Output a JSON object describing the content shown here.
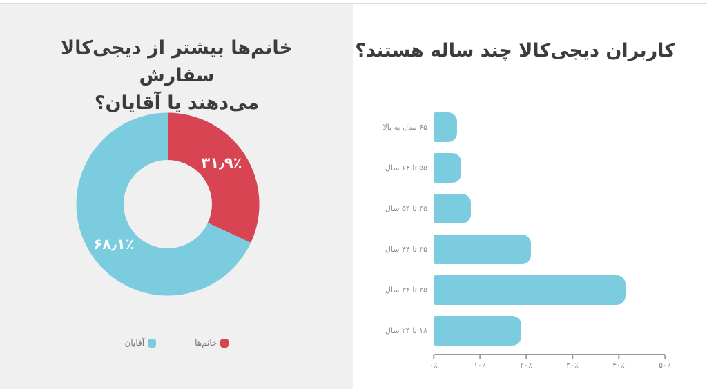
{
  "page": {
    "background_left": "#f0f0f0",
    "background_right": "#ffffff",
    "top_divider_color": "#dcdcdc",
    "title_color": "#3c3c3c"
  },
  "chart_data": [
    {
      "type": "pie",
      "donut": true,
      "title": "خانم‌ها بیشتر از دیجی‌کالا سفارش می‌دهند یا آقایان؟",
      "title_lines": [
        "خانم‌ها بیشتر از دیجی‌کالا سفارش",
        "می‌دهند یا آقایان؟"
      ],
      "start_angle": "top",
      "direction": "clockwise",
      "legend_position": "bottom",
      "slices": [
        {
          "label": "خانم‌ها",
          "value": 31.9,
          "display": "۳۱٫۹٪",
          "color": "#d94453"
        },
        {
          "label": "آقایان",
          "value": 68.1,
          "display": "۶۸٫۱٪",
          "color": "#7cccdf"
        }
      ]
    },
    {
      "type": "bar",
      "orientation": "horizontal",
      "title": "کاربران دیجی‌کالا چند ساله هستند؟",
      "categories": [
        "۶۵ سال به بالا",
        "۵۵ تا ۶۴ سال",
        "۴۵ تا ۵۴ سال",
        "۳۵ تا ۴۴ سال",
        "۲۵ تا ۳۴ سال",
        "۱۸ تا ۲۴ سال"
      ],
      "values": [
        5,
        6,
        8,
        21,
        41.5,
        19
      ],
      "bar_color": "#7cccdf",
      "label_color": "#8a8a8a",
      "xlim": [
        0,
        50
      ],
      "x_ticks": [
        0,
        10,
        20,
        30,
        40,
        50
      ],
      "x_tick_labels": [
        "۰٪",
        "۱۰٪",
        "۲۰٪",
        "۳۰٪",
        "۴۰٪",
        "۵۰٪"
      ],
      "grid": false
    }
  ]
}
